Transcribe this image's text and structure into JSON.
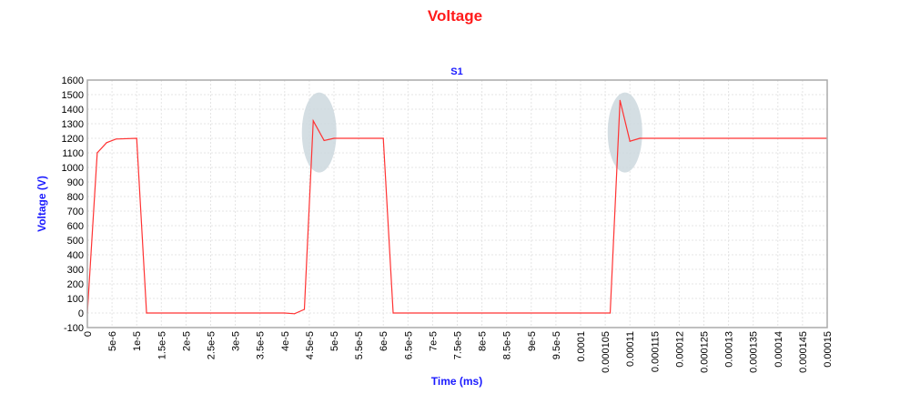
{
  "chart_data": {
    "type": "line",
    "title": "Voltage",
    "subtitle": "S1",
    "xlabel": "Time (ms)",
    "ylabel": "Voltage (V)",
    "xlim": [
      0,
      0.00015
    ],
    "ylim": [
      -100,
      1600
    ],
    "grid": true,
    "colors": {
      "series": "#ff3333",
      "title": "#ff1a1a",
      "labels": "#1a1aff",
      "annotation": "#cdd8de"
    },
    "x_ticks": [
      "0",
      "5e-6",
      "1e-5",
      "1.5e-5",
      "2e-5",
      "2.5e-5",
      "3e-5",
      "3.5e-5",
      "4e-5",
      "4.5e-5",
      "5e-5",
      "5.5e-5",
      "6e-5",
      "6.5e-5",
      "7e-5",
      "7.5e-5",
      "8e-5",
      "8.5e-5",
      "9e-5",
      "9.5e-5",
      "0.0001",
      "0.000105",
      "0.00011",
      "0.000115",
      "0.00012",
      "0.000125",
      "0.00013",
      "0.000135",
      "0.00014",
      "0.000145",
      "0.00015"
    ],
    "y_ticks": [
      -100,
      0,
      100,
      200,
      300,
      400,
      500,
      600,
      700,
      800,
      900,
      1000,
      1100,
      1200,
      1300,
      1400,
      1500,
      1600
    ],
    "series": [
      {
        "x": [
          0,
          2e-06,
          3.9e-06,
          5.8e-06,
          1e-05,
          1.2e-05,
          4e-05,
          4.2e-05,
          4.4e-05,
          4.58e-05,
          4.8e-05,
          5e-05,
          6e-05,
          6.2e-05,
          0.0001,
          0.000106,
          0.000108,
          0.00011,
          0.000112,
          0.00015
        ],
        "y": [
          0,
          1100,
          1170,
          1195,
          1200,
          0,
          0,
          -5,
          25,
          1320,
          1185,
          1200,
          1200,
          0,
          0,
          0,
          1460,
          1180,
          1200,
          1200
        ]
      }
    ],
    "annotations": [
      {
        "type": "ellipse-highlight",
        "x": 4.7e-05,
        "y": 1240
      },
      {
        "type": "ellipse-highlight",
        "x": 0.000109,
        "y": 1240
      }
    ]
  }
}
